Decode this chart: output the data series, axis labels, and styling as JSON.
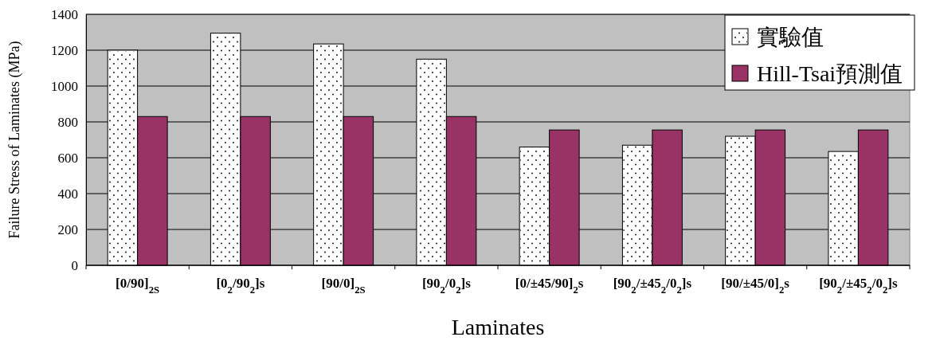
{
  "chart_data": {
    "type": "bar",
    "xlabel": "Laminates",
    "ylabel": "Failure Stress of Laminates (MPa)",
    "categories": [
      "[0/90]$_{2S}$",
      "[0$_{2}$/90$_{2}$]s",
      "[90/0]$_{2S}$",
      "[90$_{2}$/0$_{2}$]s",
      "[0/±45/90]$_{2}$s",
      "[90$_{2}$/±45$_{2}$/0$_{2}$]s",
      "[90/±45/0]$_{2}$s",
      "[90$_{2}$/±45$_{2}$/0$_{2}$]s"
    ],
    "series": [
      {
        "name": "實驗值",
        "color": "#ffffff",
        "values": [
          1200,
          1295,
          1235,
          1150,
          660,
          670,
          720,
          635
        ]
      },
      {
        "name": "Hill-Tsai預測值",
        "color": "#993366",
        "values": [
          830,
          830,
          830,
          830,
          755,
          755,
          755,
          755
        ]
      }
    ],
    "ylim": [
      0,
      1400
    ],
    "yticks": [
      0,
      200,
      400,
      600,
      800,
      1000,
      1200,
      1400
    ],
    "grid": "y",
    "legend": "top right"
  }
}
